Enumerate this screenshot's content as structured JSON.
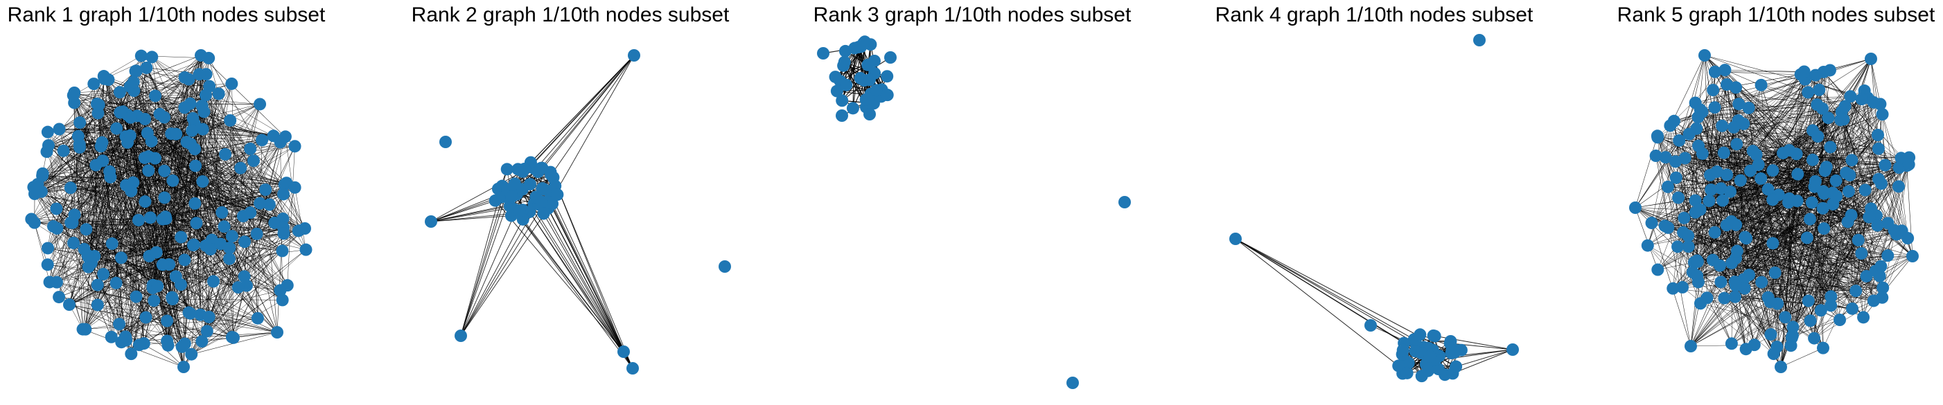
{
  "figure": {
    "node_color": "#1f77b4",
    "edge_color": "#000000",
    "panels": [
      {
        "title": "Rank 1 graph 1/10th nodes subset"
      },
      {
        "title": "Rank 2 graph 1/10th nodes subset"
      },
      {
        "title": "Rank 3 graph 1/10th nodes subset"
      },
      {
        "title": "Rank 4 graph 1/10th nodes subset"
      },
      {
        "title": "Rank 5 graph 1/10th nodes subset"
      }
    ]
  }
}
